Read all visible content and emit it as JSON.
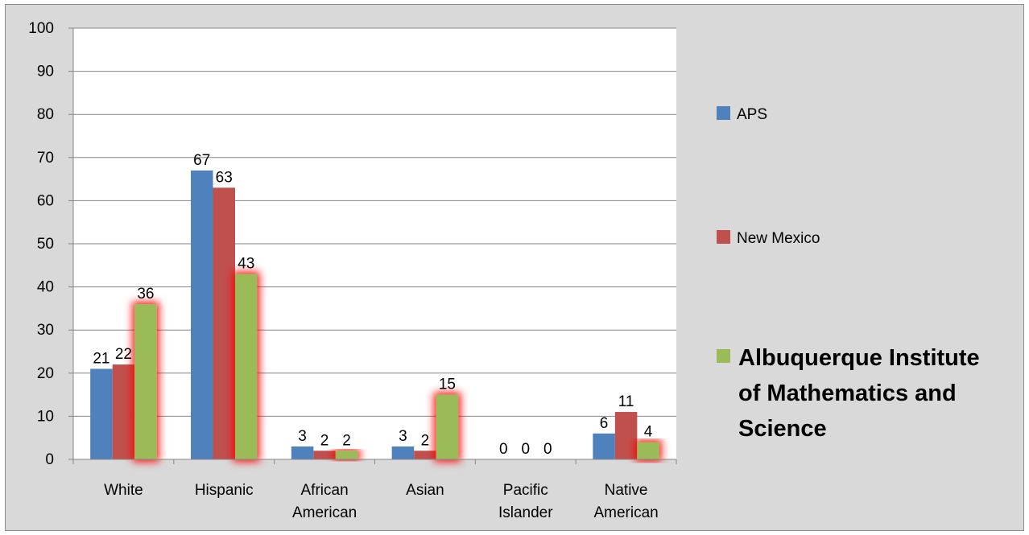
{
  "chart_data": {
    "type": "bar",
    "title": "",
    "xlabel": "",
    "ylabel": "",
    "ylim": [
      0,
      100
    ],
    "yticks": [
      0,
      10,
      20,
      30,
      40,
      50,
      60,
      70,
      80,
      90,
      100
    ],
    "grid": true,
    "legend_position": "right",
    "categories": [
      [
        "White"
      ],
      [
        "Hispanic"
      ],
      [
        "African",
        "American"
      ],
      [
        "Asian"
      ],
      [
        "Pacific",
        "Islander"
      ],
      [
        "Native",
        "American"
      ]
    ],
    "series": [
      {
        "name": "APS",
        "color": "#4f81bd",
        "highlight": false,
        "values": [
          21,
          67,
          3,
          3,
          0,
          6
        ]
      },
      {
        "name": "New Mexico",
        "color": "#c0504d",
        "highlight": false,
        "values": [
          22,
          63,
          2,
          2,
          0,
          11
        ]
      },
      {
        "name": "Albuquerque Institute of Mathematics and Science",
        "legend_lines": [
          "Albuquerque Institute",
          "of Mathematics and",
          "Science"
        ],
        "color": "#9bbb59",
        "highlight": true,
        "highlight_color": "#ff0000",
        "values": [
          36,
          43,
          2,
          15,
          0,
          4
        ]
      }
    ]
  }
}
